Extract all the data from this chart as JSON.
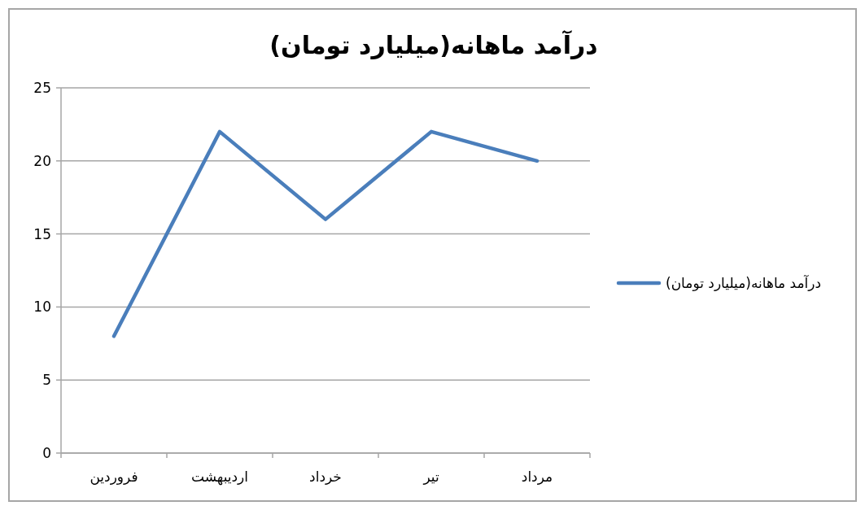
{
  "chart_data": {
    "type": "line",
    "title": "درآمد ماهانه(میلیارد تومان)",
    "categories": [
      "فروردین",
      "اردیبهشت",
      "خرداد",
      "تیر",
      "مرداد"
    ],
    "series": [
      {
        "name": "درآمد ماهانه(میلیارد تومان)",
        "color": "#4a7ebb",
        "values": [
          8,
          22,
          16,
          22,
          20
        ]
      }
    ],
    "ylim": [
      0,
      25
    ],
    "yticks": [
      0,
      5,
      10,
      15,
      20,
      25
    ],
    "grid": "y",
    "legend": "right",
    "marker": "none",
    "line_style": "solid"
  }
}
